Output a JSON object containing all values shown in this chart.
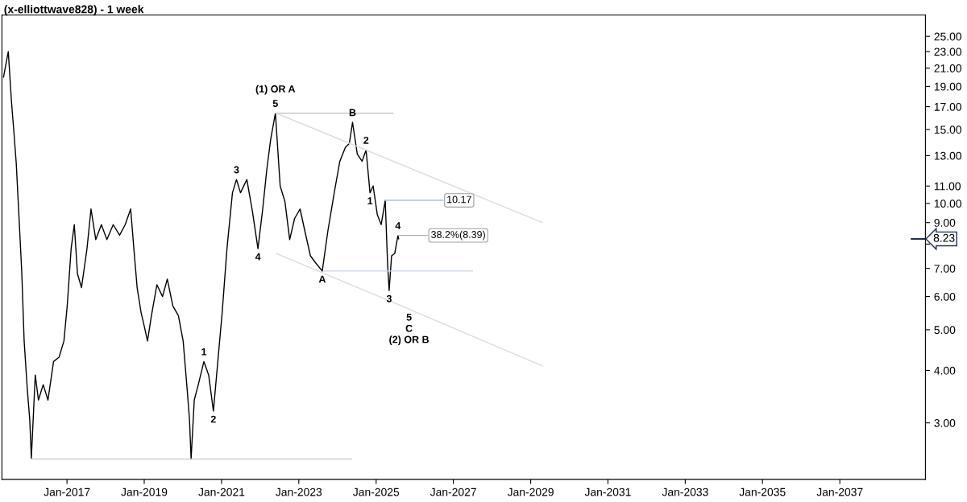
{
  "chart_data": {
    "type": "line",
    "title": "(x-elliottwave828) - 1 week",
    "log": "y",
    "grid": false,
    "legend": false,
    "line_style": "solid",
    "marker": "none",
    "xlim": [
      "2015-04-27",
      "2039-03-21"
    ],
    "xticks": [
      {
        "value": "2017-01-01",
        "label": "Jan-2017"
      },
      {
        "value": "2019-01-01",
        "label": "Jan-2019"
      },
      {
        "value": "2021-01-01",
        "label": "Jan-2021"
      },
      {
        "value": "2023-01-01",
        "label": "Jan-2023"
      },
      {
        "value": "2025-01-01",
        "label": "Jan-2025"
      },
      {
        "value": "2027-01-01",
        "label": "Jan-2027"
      },
      {
        "value": "2029-01-01",
        "label": "Jan-2029"
      },
      {
        "value": "2031-01-01",
        "label": "Jan-2031"
      },
      {
        "value": "2033-01-01",
        "label": "Jan-2033"
      },
      {
        "value": "2035-01-01",
        "label": "Jan-2035"
      },
      {
        "value": "2037-01-01",
        "label": "Jan-2037"
      }
    ],
    "ylim": [
      2.2,
      28.1
    ],
    "yticks": [
      {
        "value": 3,
        "label": "3.00"
      },
      {
        "value": 4,
        "label": "4.00"
      },
      {
        "value": 5,
        "label": "5.00"
      },
      {
        "value": 6,
        "label": "6.00"
      },
      {
        "value": 7,
        "label": "7.00"
      },
      {
        "value": 8,
        "label": null
      },
      {
        "value": 9,
        "label": "9.00"
      },
      {
        "value": 10,
        "label": "10.00"
      },
      {
        "value": 11,
        "label": "11.00"
      },
      {
        "value": 13,
        "label": "13.00"
      },
      {
        "value": 15,
        "label": "15.00"
      },
      {
        "value": 17,
        "label": "17.00"
      },
      {
        "value": 19,
        "label": "19.00"
      },
      {
        "value": 21,
        "label": "21.00"
      },
      {
        "value": 23,
        "label": "23.00"
      },
      {
        "value": 25,
        "label": "25.00"
      }
    ],
    "series": [
      {
        "color": "#000000",
        "x": [
          "2015-05-12",
          "2015-06-26",
          "2015-07-26",
          "2015-08-18",
          "2015-09-09",
          "2015-10-09",
          "2015-11-01",
          "2015-11-23",
          "2015-12-23",
          "2016-01-15",
          "2016-01-30",
          "2016-03-07",
          "2016-04-06",
          "2016-05-21",
          "2016-07-05",
          "2016-08-27",
          "2016-10-18",
          "2016-12-03",
          "2017-01-03",
          "2017-02-09",
          "2017-03-11",
          "2017-04-10",
          "2017-05-18",
          "2017-07-09",
          "2017-08-16",
          "2017-09-30",
          "2017-11-22",
          "2018-01-13",
          "2018-03-14",
          "2018-05-13",
          "2018-07-05",
          "2018-08-26",
          "2018-09-25",
          "2018-10-26",
          "2018-12-02",
          "2019-01-01",
          "2019-02-01",
          "2019-03-10",
          "2019-05-01",
          "2019-06-23",
          "2019-08-07",
          "2019-09-28",
          "2019-11-20",
          "2020-01-04",
          "2020-02-11",
          "2020-03-04",
          "2020-03-19",
          "2020-04-18",
          "2020-05-26",
          "2020-07-18",
          "2020-09-01",
          "2020-10-16",
          "2020-11-30",
          "2021-01-07",
          "2021-02-21",
          "2021-04-14",
          "2021-05-22",
          "2021-06-29",
          "2021-08-28",
          "2021-10-19",
          "2021-12-11",
          "2022-01-25",
          "2022-03-04",
          "2022-04-10",
          "2022-05-25",
          "2022-07-09",
          "2022-08-23",
          "2022-10-07",
          "2022-11-22",
          "2023-01-13",
          "2023-02-27",
          "2023-04-21",
          "2023-06-12",
          "2023-08-11",
          "2023-10-03",
          "2023-12-02",
          "2024-01-24",
          "2024-03-16",
          "2024-04-23",
          "2024-05-23",
          "2024-07-07",
          "2024-08-21",
          "2024-09-28",
          "2024-11-04",
          "2024-12-04",
          "2025-01-12",
          "2025-02-18",
          "2025-03-28",
          "2025-04-19",
          "2025-05-04",
          "2025-05-27",
          "2025-06-26",
          "2025-07-26",
          "2025-08-02"
        ],
        "values": [
          20.0,
          23.0,
          17.5,
          14.8,
          12.5,
          8.9,
          6.8,
          4.7,
          3.6,
          3.05,
          2.47,
          3.9,
          3.4,
          3.7,
          3.4,
          4.2,
          4.3,
          4.7,
          5.7,
          7.8,
          8.9,
          6.8,
          6.3,
          7.8,
          9.7,
          8.2,
          8.9,
          8.2,
          8.9,
          8.4,
          8.9,
          9.7,
          7.8,
          6.3,
          5.5,
          5.1,
          4.7,
          5.4,
          6.4,
          6.0,
          6.6,
          5.7,
          5.4,
          4.7,
          3.6,
          3.05,
          2.46,
          3.4,
          3.7,
          4.2,
          3.9,
          3.2,
          4.3,
          5.5,
          7.8,
          10.6,
          11.4,
          10.6,
          11.4,
          9.6,
          7.8,
          9.7,
          12.0,
          14.2,
          16.4,
          11.0,
          10.1,
          8.2,
          9.2,
          9.7,
          8.6,
          7.5,
          7.2,
          6.9,
          8.6,
          10.6,
          12.6,
          13.6,
          13.9,
          15.6,
          13.1,
          12.6,
          13.4,
          10.6,
          11.0,
          9.4,
          8.9,
          10.17,
          7.2,
          6.2,
          7.5,
          7.6,
          8.39,
          8.23
        ]
      },
      {
        "color": "#c8c8c8",
        "x": [
          "2016-01-30",
          "2024-05-16"
        ],
        "values": [
          2.46,
          2.46
        ]
      },
      {
        "color": "#c8c8c8",
        "x": [
          "2022-05-25",
          "2025-06-10"
        ],
        "values": [
          16.4,
          16.4
        ]
      },
      {
        "color": "#c8d4e0",
        "x": [
          "2023-08-26",
          "2027-07-01"
        ],
        "values": [
          6.9,
          6.9
        ]
      },
      {
        "color": "#a9c4e0",
        "x": [
          "2025-03-28",
          "2026-09-27"
        ],
        "values": [
          10.17,
          10.17
        ]
      },
      {
        "color": "#b0b0b0",
        "x": [
          "2025-07-26",
          "2026-05-01"
        ],
        "values": [
          8.39,
          8.39
        ]
      },
      {
        "color": "#dcdcdc",
        "x": [
          "2022-06-02",
          "2029-04-22"
        ],
        "values": [
          16.4,
          9.0
        ]
      },
      {
        "color": "#dcdcdc",
        "x": [
          "2022-06-02",
          "2025-11-08",
          "2029-04-22"
        ],
        "values": [
          7.6,
          5.6,
          4.1
        ]
      }
    ],
    "annotations": [
      {
        "text": "(1) OR A",
        "x": "2022-05-25",
        "y": 16.4
      },
      {
        "text": "5",
        "x": "2022-05-25",
        "y": 16.4
      },
      {
        "text": "3",
        "x": "2021-05-22",
        "y": 11.4
      },
      {
        "text": "4",
        "x": "2021-12-11",
        "y": 7.8
      },
      {
        "text": "1",
        "x": "2020-07-18",
        "y": 4.2
      },
      {
        "text": "2",
        "x": "2020-10-16",
        "y": 3.2
      },
      {
        "text": "A",
        "x": "2023-08-11",
        "y": 6.9
      },
      {
        "text": "B",
        "x": "2024-05-23",
        "y": 15.6
      },
      {
        "text": "2",
        "x": "2024-09-28",
        "y": 13.4
      },
      {
        "text": "1",
        "x": "2024-11-04",
        "y": 10.6
      },
      {
        "text": "3",
        "x": "2025-05-04",
        "y": 6.2
      },
      {
        "text": "4",
        "x": "2025-07-26",
        "y": 8.39
      },
      {
        "text": "5",
        "x": "2025-11-08",
        "y": 5.6
      },
      {
        "text": "C",
        "x": "2025-11-08",
        "y": 5.6
      },
      {
        "text": "(2) OR B",
        "x": "2025-11-08",
        "y": 5.6
      },
      {
        "text": "10.17",
        "x": "2026-09-27",
        "y": 10.17
      },
      {
        "text": "38.2%(8.39)",
        "x": "2026-05-01",
        "y": 8.39
      }
    ],
    "ref_lines": [
      {
        "axis": "y",
        "value": 8.23,
        "label": "8.23",
        "color": "#203050"
      }
    ]
  }
}
